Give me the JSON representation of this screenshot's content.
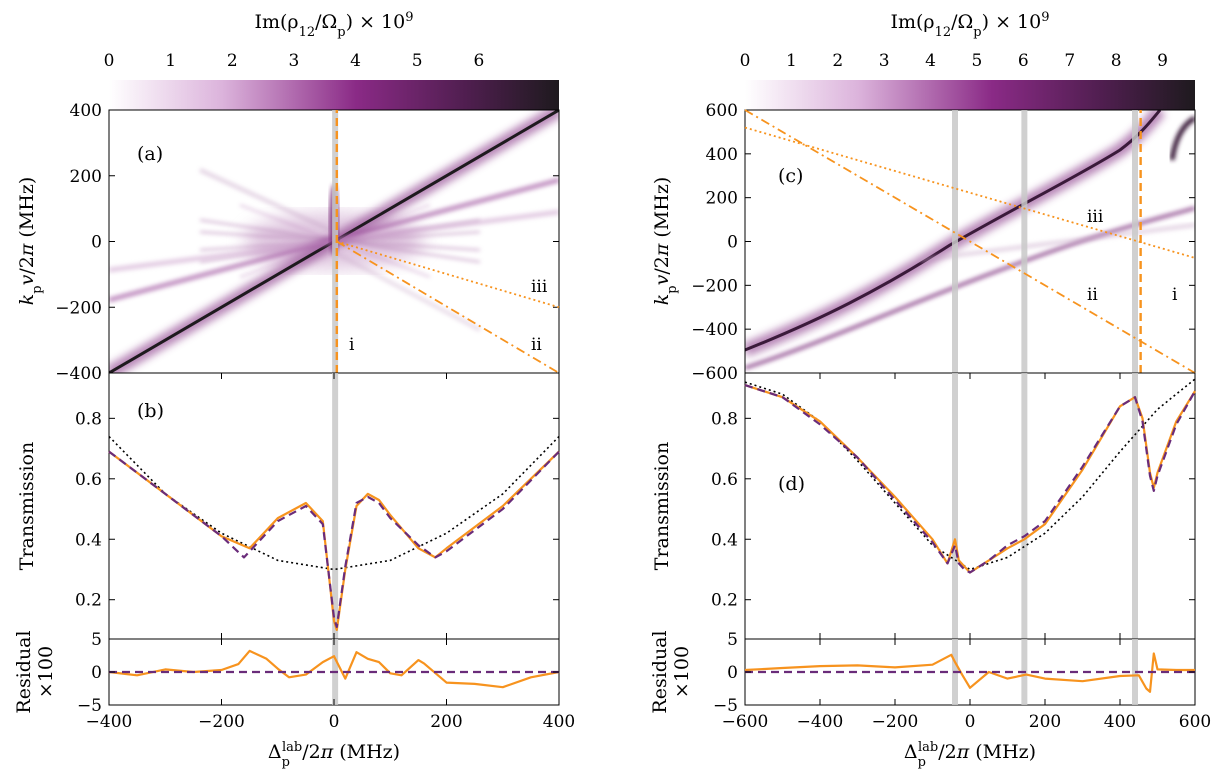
{
  "colors": {
    "model_map": "#6a1b6b",
    "experiment": "#f7931e",
    "fit": "#6a2c7a",
    "reference": "#000000",
    "guide_lines": "#f7931e",
    "highlight_bars": "#c8c8c8"
  },
  "chart_data": [
    {
      "panel": "(a)",
      "type": "heatmap",
      "colorbar": {
        "label": "Im(ρ₁₂/Ω_p) × 10⁹",
        "ticks": [
          0,
          1,
          2,
          3,
          4,
          5,
          6
        ],
        "range": [
          0,
          7.3
        ]
      },
      "xlim": [
        -400,
        400
      ],
      "ylim": [
        -400,
        400
      ],
      "ylabel": "k_p v/2π (MHz)",
      "yticks": [
        -400,
        -200,
        0,
        200,
        400
      ],
      "features": [
        {
          "kind": "ridge",
          "slope": 1.0,
          "intercept": 0,
          "strength": "strong"
        },
        {
          "kind": "ridge",
          "slope": 0.45,
          "intercept": 0,
          "strength": "medium"
        },
        {
          "kind": "ridge",
          "slope": 0.2,
          "intercept": 0,
          "strength": "weak"
        },
        {
          "kind": "ridge",
          "slope": 0.85,
          "intercept": -170,
          "strength": "medium"
        }
      ],
      "guide_lines": [
        {
          "label": "i",
          "style": "dashed",
          "from": [
            5,
            -400
          ],
          "to": [
            5,
            400
          ]
        },
        {
          "label": "ii",
          "style": "dashdot",
          "from": [
            5,
            0
          ],
          "to": [
            400,
            -400
          ]
        },
        {
          "label": "iii",
          "style": "dotted",
          "from": [
            5,
            0
          ],
          "to": [
            400,
            -200
          ]
        }
      ],
      "highlight_x": [
        2
      ]
    },
    {
      "panel": "(b)",
      "type": "line",
      "xlim": [
        -400,
        400
      ],
      "ylim": [
        0.07,
        0.95
      ],
      "ylabel": "Transmission",
      "yticks": [
        0.2,
        0.4,
        0.6,
        0.8
      ],
      "series": [
        {
          "style": "solid",
          "x": [
            -400,
            -300,
            -200,
            -150,
            -100,
            -50,
            -20,
            0,
            5,
            20,
            40,
            60,
            80,
            100,
            150,
            180,
            200,
            300,
            400
          ],
          "y": [
            0.69,
            0.55,
            0.41,
            0.37,
            0.47,
            0.52,
            0.46,
            0.13,
            0.1,
            0.3,
            0.51,
            0.55,
            0.53,
            0.48,
            0.37,
            0.34,
            0.37,
            0.51,
            0.69
          ]
        },
        {
          "style": "dashed",
          "x": [
            -400,
            -300,
            -200,
            -160,
            -100,
            -50,
            -20,
            0,
            5,
            20,
            40,
            60,
            80,
            100,
            150,
            180,
            200,
            300,
            400
          ],
          "y": [
            0.69,
            0.55,
            0.41,
            0.34,
            0.46,
            0.51,
            0.45,
            0.14,
            0.11,
            0.31,
            0.52,
            0.54,
            0.52,
            0.47,
            0.38,
            0.34,
            0.36,
            0.5,
            0.69
          ]
        },
        {
          "style": "dotted",
          "x": [
            -400,
            -300,
            -200,
            -100,
            0,
            100,
            200,
            300,
            400
          ],
          "y": [
            0.74,
            0.55,
            0.42,
            0.33,
            0.3,
            0.33,
            0.42,
            0.55,
            0.74
          ]
        }
      ],
      "highlight_x": [
        2
      ]
    },
    {
      "panel": "residual-left",
      "type": "line",
      "xlim": [
        -400,
        400
      ],
      "ylim": [
        -5,
        5
      ],
      "ylabel": "Residual ×100",
      "yticks": [
        -5,
        0,
        5
      ],
      "xlabel": "Δ_p^lab/2π (MHz)",
      "xticks": [
        -400,
        -200,
        0,
        200,
        400
      ],
      "series": [
        {
          "style": "solid",
          "x": [
            -400,
            -350,
            -300,
            -250,
            -200,
            -170,
            -150,
            -120,
            -100,
            -80,
            -50,
            -20,
            0,
            20,
            40,
            60,
            80,
            100,
            120,
            150,
            160,
            200,
            250,
            300,
            350,
            400
          ],
          "y": [
            0,
            -0.5,
            0.4,
            0,
            0.3,
            1.2,
            3.2,
            2.0,
            0.5,
            -0.8,
            -0.4,
            1.5,
            2.4,
            -1.0,
            3.0,
            2.0,
            1.5,
            -0.2,
            -0.5,
            1.8,
            1.3,
            -1.6,
            -1.8,
            -2.3,
            -0.8,
            0
          ]
        },
        {
          "style": "dashed",
          "x": [
            -400,
            400
          ],
          "y": [
            0,
            0
          ]
        }
      ],
      "highlight_x": [
        2
      ]
    },
    {
      "panel": "(c)",
      "type": "heatmap",
      "colorbar": {
        "label": "Im(ρ₁₂/Ω_p) × 10⁹",
        "ticks": [
          0,
          1,
          2,
          3,
          4,
          5,
          6,
          7,
          8,
          9
        ],
        "range": [
          0,
          9.7
        ]
      },
      "xlim": [
        -600,
        600
      ],
      "ylim": [
        -600,
        600
      ],
      "ylabel": "k_p v/2π (MHz)",
      "yticks": [
        -600,
        -400,
        -200,
        0,
        200,
        400,
        600
      ],
      "features": [
        {
          "kind": "curved-ridge",
          "strength": "strong"
        },
        {
          "kind": "ridge",
          "slope": 0.5,
          "intercept": -75,
          "strength": "weak"
        },
        {
          "kind": "curved-ridge-right",
          "strength": "strong"
        }
      ],
      "guide_lines": [
        {
          "label": "i",
          "style": "dashed",
          "from": [
            455,
            -600
          ],
          "to": [
            455,
            600
          ]
        },
        {
          "label": "ii",
          "style": "dashdot",
          "from": [
            -600,
            600
          ],
          "to": [
            600,
            -600
          ]
        },
        {
          "label": "iii",
          "style": "dotted",
          "from": [
            -600,
            520
          ],
          "to": [
            600,
            -75
          ]
        }
      ],
      "highlight_x": [
        -40,
        145,
        440
      ]
    },
    {
      "panel": "(d)",
      "type": "line",
      "xlim": [
        -600,
        600
      ],
      "ylim": [
        0.07,
        0.95
      ],
      "ylabel": "Transmission",
      "yticks": [
        0.2,
        0.4,
        0.6,
        0.8
      ],
      "series": [
        {
          "style": "solid",
          "x": [
            -600,
            -500,
            -400,
            -300,
            -200,
            -100,
            -60,
            -40,
            -30,
            -15,
            0,
            50,
            100,
            145,
            200,
            300,
            400,
            440,
            460,
            480,
            490,
            500,
            550,
            600
          ],
          "y": [
            0.91,
            0.87,
            0.79,
            0.67,
            0.54,
            0.4,
            0.32,
            0.4,
            0.33,
            0.31,
            0.29,
            0.33,
            0.37,
            0.4,
            0.45,
            0.63,
            0.84,
            0.87,
            0.8,
            0.62,
            0.57,
            0.62,
            0.79,
            0.89
          ]
        },
        {
          "style": "dashed",
          "x": [
            -600,
            -500,
            -400,
            -300,
            -200,
            -100,
            -60,
            -40,
            -30,
            -15,
            0,
            50,
            100,
            145,
            200,
            300,
            400,
            440,
            460,
            480,
            490,
            500,
            550,
            600
          ],
          "y": [
            0.91,
            0.87,
            0.78,
            0.67,
            0.53,
            0.39,
            0.32,
            0.38,
            0.32,
            0.3,
            0.29,
            0.33,
            0.38,
            0.41,
            0.46,
            0.64,
            0.84,
            0.87,
            0.79,
            0.61,
            0.56,
            0.61,
            0.78,
            0.89
          ]
        },
        {
          "style": "dotted",
          "x": [
            -600,
            -500,
            -400,
            -300,
            -200,
            -100,
            0,
            100,
            200,
            300,
            400,
            500,
            600
          ],
          "y": [
            0.92,
            0.88,
            0.79,
            0.66,
            0.52,
            0.38,
            0.3,
            0.34,
            0.42,
            0.54,
            0.69,
            0.83,
            0.93
          ]
        }
      ],
      "highlight_x": [
        -40,
        145,
        440
      ]
    },
    {
      "panel": "residual-right",
      "type": "line",
      "xlim": [
        -600,
        600
      ],
      "ylim": [
        -5,
        5
      ],
      "ylabel": "Residual ×100",
      "yticks": [
        -5,
        0,
        5
      ],
      "xlabel": "Δ_p^lab/2π (MHz)",
      "xticks": [
        -600,
        -400,
        -200,
        0,
        200,
        400,
        600
      ],
      "series": [
        {
          "style": "solid",
          "x": [
            -600,
            -500,
            -400,
            -300,
            -200,
            -100,
            -50,
            -40,
            -20,
            0,
            50,
            100,
            150,
            200,
            300,
            400,
            450,
            470,
            480,
            490,
            500,
            550,
            600
          ],
          "y": [
            0.3,
            0.6,
            0.9,
            1.0,
            0.7,
            1.1,
            2.6,
            1.5,
            -0.5,
            -2.4,
            0,
            -1.0,
            -0.4,
            -1.0,
            -1.4,
            -0.6,
            -0.5,
            -2.5,
            -3.0,
            2.8,
            0.4,
            0.3,
            0.3
          ]
        },
        {
          "style": "dashed",
          "x": [
            -600,
            600
          ],
          "y": [
            0,
            0
          ]
        }
      ],
      "highlight_x": [
        -40,
        145,
        440
      ]
    }
  ],
  "labels": {
    "panel_a": "(a)",
    "panel_b": "(b)",
    "panel_c": "(c)",
    "panel_d": "(d)",
    "line_i": "i",
    "line_ii": "ii",
    "line_iii": "iii"
  }
}
